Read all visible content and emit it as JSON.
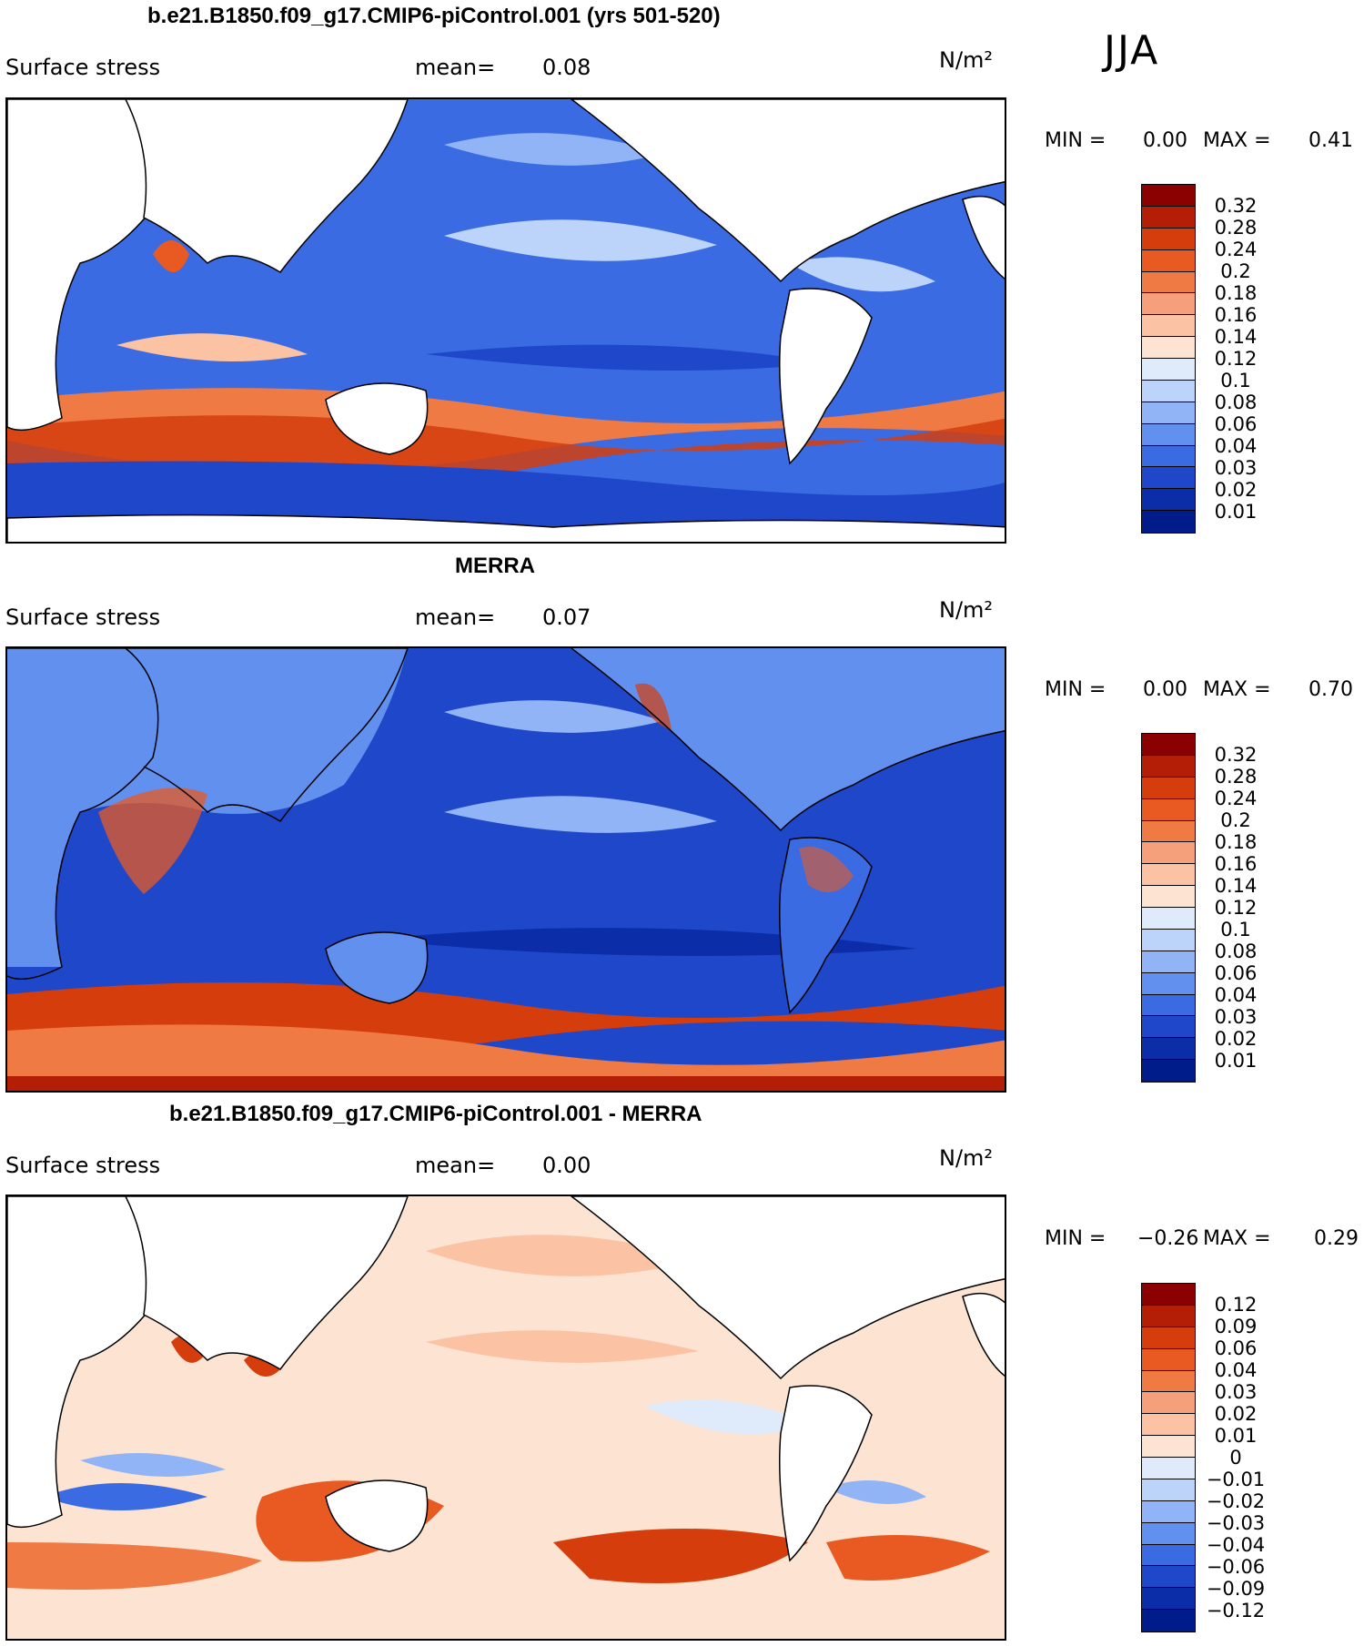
{
  "season": "JJA",
  "panels": [
    {
      "title": "b.e21.B1850.f09_g17.CMIP6-piControl.001 (yrs 501-520)",
      "variable": "Surface stress",
      "mean_label": "mean=",
      "mean_value": "0.08",
      "units": "N/m²",
      "min_label": "MIN =",
      "min_value": "0.00",
      "max_label": "MAX =",
      "max_value": "0.41",
      "colorbar": {
        "levels": [
          "0.32",
          "0.28",
          "0.24",
          "0.2",
          "0.18",
          "0.16",
          "0.14",
          "0.12",
          "0.1",
          "0.08",
          "0.06",
          "0.04",
          "0.03",
          "0.02",
          "0.01"
        ],
        "colors": [
          "#8b0000",
          "#b41e06",
          "#d53d0d",
          "#e85a22",
          "#f07a44",
          "#f6a07b",
          "#fbc2a3",
          "#fde3d2",
          "#dfeafb",
          "#bcd3fa",
          "#90b4f6",
          "#6190ee",
          "#3a6be3",
          "#1e48c9",
          "#0c2da8",
          "#001b8a"
        ]
      }
    },
    {
      "title": "MERRA",
      "variable": "Surface stress",
      "mean_label": "mean=",
      "mean_value": "0.07",
      "units": "N/m²",
      "min_label": "MIN =",
      "min_value": "0.00",
      "max_label": "MAX =",
      "max_value": "0.70",
      "colorbar": {
        "levels": [
          "0.32",
          "0.28",
          "0.24",
          "0.2",
          "0.18",
          "0.16",
          "0.14",
          "0.12",
          "0.1",
          "0.08",
          "0.06",
          "0.04",
          "0.03",
          "0.02",
          "0.01"
        ],
        "colors": [
          "#8b0000",
          "#b41e06",
          "#d53d0d",
          "#e85a22",
          "#f07a44",
          "#f6a07b",
          "#fbc2a3",
          "#fde3d2",
          "#dfeafb",
          "#bcd3fa",
          "#90b4f6",
          "#6190ee",
          "#3a6be3",
          "#1e48c9",
          "#0c2da8",
          "#001b8a"
        ]
      }
    },
    {
      "title": "b.e21.B1850.f09_g17.CMIP6-piControl.001 - MERRA",
      "variable": "Surface stress",
      "mean_label": "mean=",
      "mean_value": "0.00",
      "units": "N/m²",
      "min_label": "MIN =",
      "min_value": "−0.26",
      "max_label": "MAX =",
      "max_value": "0.29",
      "colorbar": {
        "levels": [
          "0.12",
          "0.09",
          "0.06",
          "0.04",
          "0.03",
          "0.02",
          "0.01",
          "0",
          "−0.01",
          "−0.02",
          "−0.03",
          "−0.04",
          "−0.06",
          "−0.09",
          "−0.12"
        ],
        "colors": [
          "#8b0000",
          "#b41e06",
          "#d53d0d",
          "#e85a22",
          "#f07a44",
          "#f6a07b",
          "#fbc2a3",
          "#fde3d2",
          "#dfeafb",
          "#bcd3fa",
          "#90b4f6",
          "#6190ee",
          "#3a6be3",
          "#1e48c9",
          "#0c2da8",
          "#001b8a"
        ]
      }
    }
  ]
}
